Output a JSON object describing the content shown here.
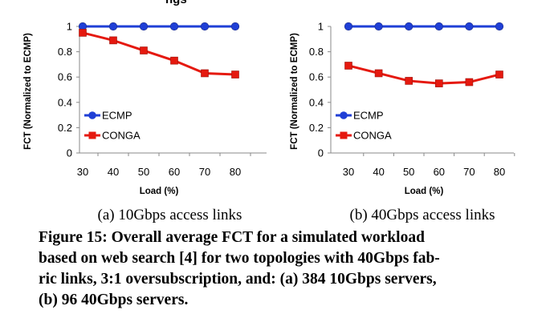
{
  "figure": {
    "top_cut_text": "ngs",
    "caption_lines": [
      "Figure 15:  Overall average FCT for a simulated workload",
      "based on web search [4] for two topologies with 40Gbps fab-",
      "ric links, 3:1 oversubscription, and: (a) 384 10Gbps servers,",
      "(b) 96 40Gbps servers."
    ]
  },
  "colors": {
    "ecmp": "#1f3fd6",
    "conga": "#e5190f",
    "axis": "#888888"
  },
  "chart_data": [
    {
      "type": "line",
      "subcaption": "(a)  10Gbps access links",
      "xlabel": "Load (%)",
      "ylabel": "FCT (Normalized to ECMP)",
      "categories": [
        "30",
        "40",
        "50",
        "60",
        "70",
        "80"
      ],
      "ylim": [
        0,
        1
      ],
      "yticks": [
        0,
        0.2,
        0.4,
        0.6,
        0.8,
        1
      ],
      "ytick_labels": [
        "0",
        "0.2",
        "0.4",
        "0.6",
        "0.8",
        "1"
      ],
      "legend_position": "bottom-left",
      "grid": false,
      "series": [
        {
          "name": "ECMP",
          "marker": "circle",
          "values": [
            1,
            1,
            1,
            1,
            1,
            1
          ]
        },
        {
          "name": "CONGA",
          "marker": "square",
          "values": [
            0.95,
            0.89,
            0.81,
            0.73,
            0.63,
            0.62
          ]
        }
      ]
    },
    {
      "type": "line",
      "subcaption": "(b)  40Gbps access links",
      "xlabel": "Load (%)",
      "ylabel": "FCT (Normalized to ECMP)",
      "categories": [
        "30",
        "40",
        "50",
        "60",
        "70",
        "80"
      ],
      "ylim": [
        0,
        1
      ],
      "yticks": [
        0,
        0.2,
        0.4,
        0.6,
        0.8,
        1
      ],
      "ytick_labels": [
        "0",
        "0.2",
        "0.4",
        "0.6",
        "0.8",
        "1"
      ],
      "legend_position": "bottom-left",
      "grid": false,
      "series": [
        {
          "name": "ECMP",
          "marker": "circle",
          "values": [
            1,
            1,
            1,
            1,
            1,
            1
          ]
        },
        {
          "name": "CONGA",
          "marker": "square",
          "values": [
            0.69,
            0.63,
            0.57,
            0.55,
            0.56,
            0.62
          ]
        }
      ]
    }
  ]
}
